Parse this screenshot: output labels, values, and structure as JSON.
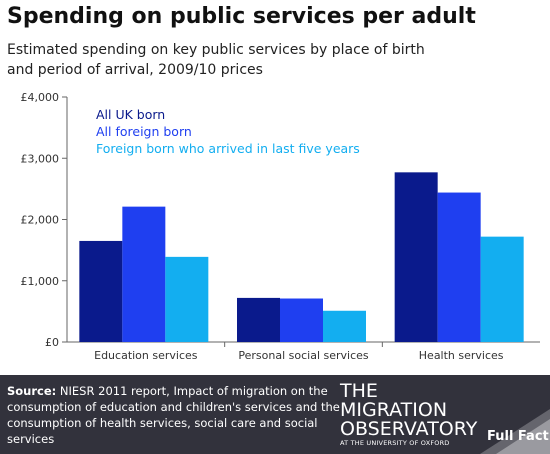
{
  "header": {
    "title": "Spending on public services per adult",
    "subtitle": "Estimated spending on key public services by place of birth and period of arrival, 2009/10 prices"
  },
  "chart_data": {
    "type": "bar",
    "categories": [
      "Education services",
      "Personal social services",
      "Health services"
    ],
    "series": [
      {
        "name": "All UK born",
        "color": "#0a1a8c",
        "values": [
          1650,
          720,
          2770
        ]
      },
      {
        "name": "All foreign born",
        "color": "#1f3ff0",
        "values": [
          2210,
          710,
          2440
        ]
      },
      {
        "name": "Foreign born who arrived in last five years",
        "color": "#13aef0",
        "values": [
          1390,
          510,
          1720
        ]
      }
    ],
    "ylim": [
      0,
      4000
    ],
    "yticks": [
      0,
      1000,
      2000,
      3000,
      4000
    ],
    "ytick_labels": [
      "£0",
      "£1,000",
      "£2,000",
      "£3,000",
      "£4,000"
    ],
    "legend_position": "top-left",
    "grid": false
  },
  "footer": {
    "source_label": "Source:",
    "source_text": "NIESR 2011 report, Impact of migration on the consumption of education and children's services and the consumption of health services, social care and social services",
    "logo_line1": "THE",
    "logo_line2": "MIGRATION",
    "logo_line3": "OBSERVATORY",
    "logo_line4": "AT THE UNIVERSITY OF OXFORD",
    "ff_logo": "Full Fact"
  }
}
